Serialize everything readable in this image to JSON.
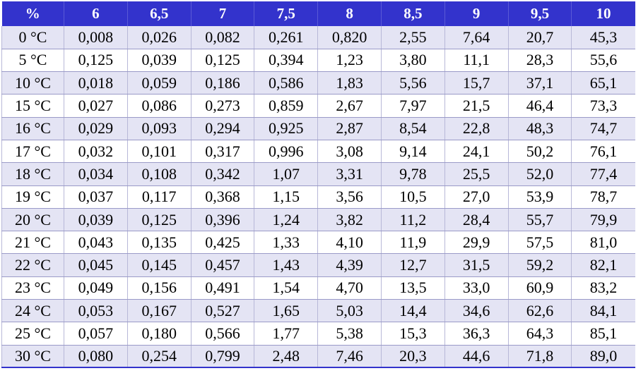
{
  "table": {
    "headers": [
      "%",
      "6",
      "6,5",
      "7",
      "7,5",
      "8",
      "8,5",
      "9",
      "9,5",
      "10"
    ],
    "rows": [
      [
        "0 °C",
        "0,008",
        "0,026",
        "0,082",
        "0,261",
        "0,820",
        "2,55",
        "7,64",
        "20,7",
        "45,3"
      ],
      [
        "5 °C",
        "0,125",
        "0,039",
        "0,125",
        "0,394",
        "1,23",
        "3,80",
        "11,1",
        "28,3",
        "55,6"
      ],
      [
        "10 °C",
        "0,018",
        "0,059",
        "0,186",
        "0,586",
        "1,83",
        "5,56",
        "15,7",
        "37,1",
        "65,1"
      ],
      [
        "15 °C",
        "0,027",
        "0,086",
        "0,273",
        "0,859",
        "2,67",
        "7,97",
        "21,5",
        "46,4",
        "73,3"
      ],
      [
        "16 °C",
        "0,029",
        "0,093",
        "0,294",
        "0,925",
        "2,87",
        "8,54",
        "22,8",
        "48,3",
        "74,7"
      ],
      [
        "17 °C",
        "0,032",
        "0,101",
        "0,317",
        "0,996",
        "3,08",
        "9,14",
        "24,1",
        "50,2",
        "76,1"
      ],
      [
        "18 °C",
        "0,034",
        "0,108",
        "0,342",
        "1,07",
        "3,31",
        "9,78",
        "25,5",
        "52,0",
        "77,4"
      ],
      [
        "19 °C",
        "0,037",
        "0,117",
        "0,368",
        "1,15",
        "3,56",
        "10,5",
        "27,0",
        "53,9",
        "78,7"
      ],
      [
        "20 °C",
        "0,039",
        "0,125",
        "0,396",
        "1,24",
        "3,82",
        "11,2",
        "28,4",
        "55,7",
        "79,9"
      ],
      [
        "21 °C",
        "0,043",
        "0,135",
        "0,425",
        "1,33",
        "4,10",
        "11,9",
        "29,9",
        "57,5",
        "81,0"
      ],
      [
        "22 °C",
        "0,045",
        "0,145",
        "0,457",
        "1,43",
        "4,39",
        "12,7",
        "31,5",
        "59,2",
        "82,1"
      ],
      [
        "23 °C",
        "0,049",
        "0,156",
        "0,491",
        "1,54",
        "4,70",
        "13,5",
        "33,0",
        "60,9",
        "83,2"
      ],
      [
        "24 °C",
        "0,053",
        "0,167",
        "0,527",
        "1,65",
        "5,03",
        "14,4",
        "34,6",
        "62,6",
        "84,1"
      ],
      [
        "25 °C",
        "0,057",
        "0,180",
        "0,566",
        "1,77",
        "5,38",
        "15,3",
        "36,3",
        "64,3",
        "85,1"
      ],
      [
        "30 °C",
        "0,080",
        "0,254",
        "0,799",
        "2,48",
        "7,46",
        "20,3",
        "44,6",
        "71,8",
        "89,0"
      ]
    ]
  },
  "colors": {
    "header_background": "#3333cc",
    "header_text": "#ffffff",
    "row_band": "#e4e4f4",
    "row_plain": "#ffffff"
  }
}
